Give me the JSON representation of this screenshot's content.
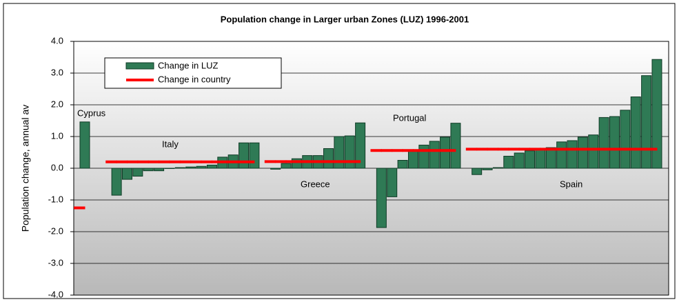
{
  "chart_data": {
    "type": "bar",
    "title": "Population change in Larger urban Zones (LUZ) 1996-2001",
    "y_label": "Population change, annual av",
    "categories": [
      null,
      null,
      null,
      null,
      null,
      null,
      null,
      null,
      null,
      null,
      null,
      null,
      null,
      null,
      null,
      null,
      null,
      null,
      null,
      null,
      null,
      null,
      null,
      null,
      null,
      null,
      null,
      null,
      null,
      null,
      null,
      null,
      null,
      null,
      null,
      null,
      null,
      null,
      null,
      null,
      null,
      null,
      null,
      null,
      null,
      null,
      null,
      null,
      null,
      null,
      null,
      null,
      null,
      null,
      null
    ],
    "series": [
      {
        "name": "Change in LUZ",
        "color": "#2f7a55",
        "values": [
          1.46,
          null,
          null,
          -0.85,
          -0.35,
          -0.25,
          -0.08,
          -0.08,
          -0.01,
          0.02,
          0.04,
          0.06,
          0.1,
          0.35,
          0.42,
          0.8,
          0.8,
          null,
          -0.03,
          0.15,
          0.3,
          0.4,
          0.4,
          0.62,
          1.0,
          1.02,
          1.43,
          null,
          -1.87,
          -0.9,
          0.25,
          0.55,
          0.73,
          0.85,
          0.98,
          1.42,
          null,
          -0.2,
          -0.05,
          0.02,
          0.38,
          0.48,
          0.55,
          0.6,
          0.65,
          0.83,
          0.87,
          0.98,
          1.05,
          1.6,
          1.63,
          1.83,
          2.25,
          2.92,
          3.43
        ]
      },
      {
        "name": "Change in country",
        "color": "#ff0000",
        "values": [
          -1.25,
          null,
          null,
          0.2,
          0.2,
          0.2,
          0.2,
          0.2,
          0.2,
          0.2,
          0.2,
          0.2,
          0.2,
          0.2,
          0.2,
          0.2,
          0.2,
          null,
          0.21,
          0.21,
          0.21,
          0.21,
          0.21,
          0.21,
          0.21,
          0.21,
          0.21,
          null,
          0.56,
          0.56,
          0.56,
          0.56,
          0.56,
          0.56,
          0.56,
          0.56,
          null,
          0.6,
          0.6,
          0.6,
          0.6,
          0.6,
          0.6,
          0.6,
          0.6,
          0.6,
          0.6,
          0.6,
          0.6,
          0.6,
          0.6,
          0.6,
          0.6,
          0.6,
          0.6
        ]
      }
    ],
    "annotations": [
      "Cyprus",
      "Italy",
      "Greece",
      "Portugal",
      "Spain"
    ],
    "ylim": [
      -4,
      4
    ],
    "yticks": [
      {
        "value": -4,
        "label": "-4.0"
      },
      {
        "value": -3,
        "label": "-3.0"
      },
      {
        "value": -2,
        "label": "-2.0"
      },
      {
        "value": -1,
        "label": "-1.0"
      },
      {
        "value": 0,
        "label": "0.0"
      },
      {
        "value": 1,
        "label": "1.0"
      },
      {
        "value": 2,
        "label": "2.0"
      },
      {
        "value": 3,
        "label": "3.0"
      },
      {
        "value": 4,
        "label": "4.0"
      }
    ],
    "grid": true
  }
}
